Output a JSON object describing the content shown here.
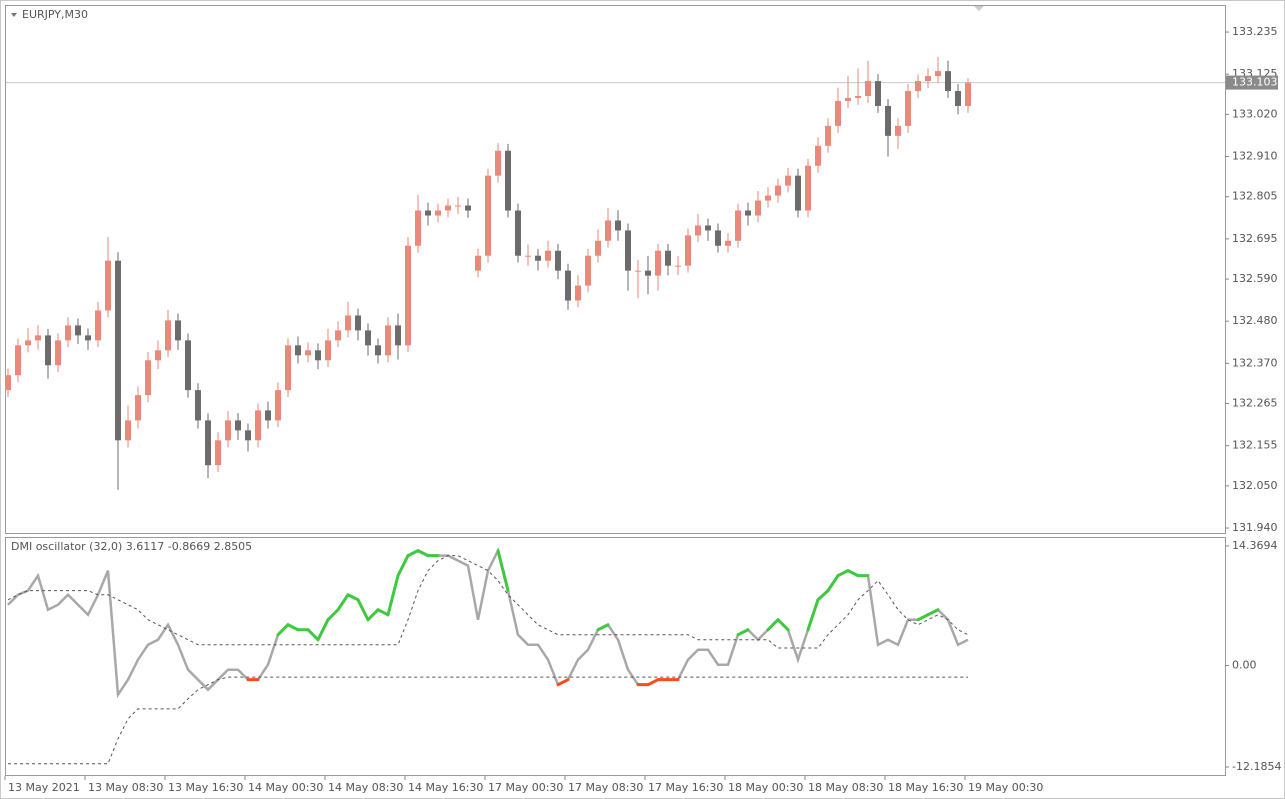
{
  "chart_data": [
    {
      "type": "candlestick",
      "title": "EURJPY,M30",
      "up_color": "#e8897a",
      "down_color": "#6b6b6b",
      "open": [
        132.3,
        132.339,
        132.417,
        132.43,
        132.443,
        132.365,
        132.43,
        132.469,
        132.443,
        132.43,
        132.508,
        132.638,
        132.169,
        132.221,
        132.287,
        132.378,
        132.404,
        132.482,
        132.43,
        132.3,
        132.221,
        132.104,
        132.169,
        132.221,
        132.195,
        132.169,
        132.247,
        132.221,
        132.3,
        132.417,
        132.391,
        132.404,
        132.378,
        132.43,
        132.456,
        132.495,
        132.456,
        132.417,
        132.391,
        132.469,
        132.417,
        132.677,
        132.769,
        132.756,
        132.769,
        132.782,
        132.782,
        132.612,
        132.651,
        132.86,
        132.925,
        132.769,
        132.651,
        132.651,
        132.638,
        132.664,
        132.612,
        132.534,
        132.573,
        132.651,
        132.69,
        132.743,
        132.717,
        132.612,
        132.612,
        132.599,
        132.664,
        132.625,
        132.625,
        132.704,
        132.73,
        132.717,
        132.677,
        132.69,
        132.769,
        132.756,
        132.795,
        132.808,
        132.834,
        132.86,
        132.769,
        132.886,
        132.938,
        132.99,
        133.055,
        133.063,
        133.068,
        133.107,
        133.042,
        132.964,
        132.99,
        133.081,
        133.107,
        133.12,
        133.133,
        133.081,
        133.042
      ],
      "high": [
        132.357,
        132.435,
        132.462,
        132.47,
        132.46,
        132.448,
        132.49,
        132.487,
        132.461,
        132.53,
        132.7,
        132.66,
        132.26,
        132.31,
        132.4,
        132.43,
        132.51,
        132.5,
        132.448,
        132.318,
        132.239,
        132.19,
        132.245,
        132.24,
        132.213,
        132.265,
        132.27,
        132.32,
        132.435,
        132.44,
        132.425,
        132.422,
        132.46,
        132.48,
        132.53,
        132.513,
        132.474,
        132.435,
        132.49,
        132.5,
        132.7,
        132.81,
        132.79,
        132.787,
        132.8,
        132.805,
        132.8,
        132.669,
        132.878,
        132.945,
        132.943,
        132.787,
        132.68,
        132.669,
        132.69,
        132.682,
        132.63,
        132.6,
        132.669,
        132.72,
        132.775,
        132.77,
        132.735,
        132.64,
        132.65,
        132.682,
        132.682,
        132.65,
        132.722,
        132.76,
        132.748,
        132.735,
        132.71,
        132.787,
        132.79,
        132.82,
        132.83,
        132.852,
        132.88,
        132.878,
        132.904,
        132.96,
        133.01,
        133.09,
        133.12,
        133.14,
        133.16,
        133.125,
        133.06,
        133.01,
        133.099,
        133.125,
        133.14,
        133.17,
        133.16,
        133.099,
        133.115
      ],
      "low": [
        132.282,
        132.321,
        132.399,
        132.405,
        132.33,
        132.347,
        132.412,
        132.42,
        132.405,
        132.412,
        132.49,
        132.04,
        132.15,
        132.2,
        132.269,
        132.355,
        132.386,
        132.405,
        132.28,
        132.2,
        132.07,
        132.086,
        132.151,
        132.17,
        132.14,
        132.151,
        132.2,
        132.203,
        132.282,
        132.37,
        132.373,
        132.355,
        132.36,
        132.412,
        132.438,
        132.43,
        132.39,
        132.37,
        132.373,
        132.38,
        132.399,
        132.659,
        132.73,
        132.738,
        132.751,
        132.76,
        132.75,
        132.594,
        132.633,
        132.842,
        132.751,
        132.633,
        132.625,
        132.612,
        132.62,
        132.59,
        132.51,
        132.516,
        132.555,
        132.633,
        132.672,
        132.69,
        132.56,
        132.54,
        132.55,
        132.56,
        132.6,
        132.6,
        132.607,
        132.686,
        132.69,
        132.659,
        132.659,
        132.672,
        132.73,
        132.738,
        132.777,
        132.79,
        132.816,
        132.751,
        132.751,
        132.868,
        132.92,
        132.972,
        133.037,
        133.045,
        133.05,
        133.024,
        132.91,
        132.93,
        132.972,
        133.063,
        133.089,
        133.102,
        133.063,
        133.02,
        133.024
      ],
      "close": [
        132.339,
        132.417,
        132.43,
        132.443,
        132.365,
        132.43,
        132.469,
        132.443,
        132.43,
        132.508,
        132.638,
        132.169,
        132.221,
        132.287,
        132.378,
        132.404,
        132.482,
        132.43,
        132.3,
        132.221,
        132.104,
        132.169,
        132.221,
        132.195,
        132.169,
        132.247,
        132.221,
        132.3,
        132.417,
        132.391,
        132.404,
        132.378,
        132.43,
        132.456,
        132.495,
        132.456,
        132.417,
        132.391,
        132.469,
        132.417,
        132.677,
        132.769,
        132.756,
        132.769,
        132.782,
        132.782,
        132.769,
        132.651,
        132.86,
        132.925,
        132.769,
        132.651,
        132.651,
        132.638,
        132.664,
        132.612,
        132.534,
        132.573,
        132.651,
        132.69,
        132.743,
        132.717,
        132.612,
        132.612,
        132.599,
        132.664,
        132.625,
        132.625,
        132.704,
        132.73,
        132.717,
        132.677,
        132.69,
        132.769,
        132.756,
        132.795,
        132.808,
        132.834,
        132.86,
        132.769,
        132.886,
        132.938,
        132.99,
        133.055,
        133.063,
        133.068,
        133.107,
        133.042,
        132.964,
        132.99,
        133.081,
        133.107,
        133.12,
        133.133,
        133.081,
        133.042,
        133.103
      ],
      "current_price": 133.103,
      "ylim": [
        131.927,
        133.303
      ],
      "yticks": [
        133.235,
        133.125,
        {
          "value": 133.02,
          "label": "133.020"
        },
        {
          "value": 132.91,
          "label": "132.910"
        },
        132.805,
        132.695,
        {
          "value": 132.59,
          "label": "132.590"
        },
        {
          "value": 132.48,
          "label": "132.480"
        },
        {
          "value": 132.37,
          "label": "132.370"
        },
        132.265,
        132.155,
        {
          "value": 132.05,
          "label": "132.050"
        },
        {
          "value": 131.94,
          "label": "131.940"
        }
      ]
    },
    {
      "type": "line",
      "title": "DMI oscillator (32,0) 3.6117 -0.8669 2.8505",
      "rise_color": "#3ec93e",
      "fall_color": "#ff4a1a",
      "series": [
        {
          "color": "#a8a8a8",
          "values": [
            7.3,
            8.5,
            9.0,
            10.8,
            6.7,
            7.3,
            8.5,
            7.3,
            6.1,
            8.5,
            11.4,
            -3.5,
            -1.7,
            0.7,
            2.5,
            3.1,
            4.9,
            2.5,
            -0.5,
            -1.7,
            -2.9,
            -1.7,
            -0.5,
            -0.5,
            -1.7,
            -1.7,
            0.1,
            3.7,
            4.9,
            4.3,
            4.3,
            3.1,
            5.5,
            6.7,
            8.5,
            7.9,
            5.5,
            6.7,
            6.1,
            10.8,
            13.2,
            13.8,
            13.2,
            13.2,
            13.2,
            12.6,
            12.0,
            5.5,
            11.4,
            13.8,
            9.0,
            3.7,
            2.5,
            2.5,
            0.7,
            -2.3,
            -1.7,
            0.7,
            1.9,
            4.3,
            4.9,
            3.1,
            -0.5,
            -2.3,
            -2.3,
            -1.7,
            -1.7,
            -1.7,
            0.7,
            1.9,
            1.9,
            0.1,
            0.1,
            3.7,
            4.3,
            3.1,
            4.3,
            5.5,
            4.3,
            0.7,
            4.3,
            7.9,
            9.0,
            10.8,
            11.4,
            10.8,
            10.8,
            2.5,
            3.1,
            2.5,
            5.5,
            5.5,
            6.1,
            6.7,
            5.5,
            2.5,
            3.1
          ]
        },
        {
          "color": "#555555",
          "dashed": true,
          "values": [
            7.9,
            8.5,
            9.0,
            9.0,
            9.0,
            9.0,
            9.0,
            9.0,
            9.0,
            8.5,
            8.5,
            7.9,
            7.3,
            6.7,
            5.5,
            4.9,
            4.3,
            3.7,
            3.1,
            2.5,
            2.5,
            2.5,
            2.5,
            2.5,
            2.5,
            2.5,
            2.5,
            2.5,
            2.5,
            2.5,
            2.5,
            2.5,
            2.5,
            2.5,
            2.5,
            2.5,
            2.5,
            2.5,
            2.5,
            2.5,
            5.5,
            9.0,
            11.4,
            12.6,
            13.2,
            13.2,
            12.6,
            12.0,
            11.4,
            10.2,
            8.5,
            7.3,
            6.1,
            4.9,
            4.3,
            3.7,
            3.7,
            3.7,
            3.7,
            3.7,
            3.7,
            3.7,
            3.7,
            3.7,
            3.7,
            3.7,
            3.7,
            3.7,
            3.7,
            3.1,
            3.1,
            3.1,
            3.1,
            3.1,
            3.1,
            3.1,
            3.1,
            2.1,
            2.1,
            2.1,
            2.1,
            2.1,
            3.7,
            4.9,
            6.1,
            7.9,
            9.0,
            10.2,
            8.5,
            6.7,
            5.5,
            4.9,
            5.5,
            6.1,
            5.5,
            4.3,
            3.7
          ]
        },
        {
          "color": "#555555",
          "dashed": true,
          "values": [
            -11.8,
            -11.8,
            -11.8,
            -11.8,
            -11.8,
            -11.8,
            -11.8,
            -11.8,
            -11.8,
            -11.8,
            -11.8,
            -8.8,
            -6.4,
            -5.2,
            -5.2,
            -5.2,
            -5.2,
            -5.2,
            -4.0,
            -2.9,
            -2.3,
            -1.7,
            -1.4,
            -1.4,
            -1.4,
            -1.4,
            -1.4,
            -1.4,
            -1.4,
            -1.4,
            -1.4,
            -1.4,
            -1.4,
            -1.4,
            -1.4,
            -1.4,
            -1.4,
            -1.4,
            -1.4,
            -1.4,
            -1.4,
            -1.4,
            -1.4,
            -1.4,
            -1.4,
            -1.4,
            -1.4,
            -1.4,
            -1.4,
            -1.4,
            -1.4,
            -1.4,
            -1.4,
            -1.4,
            -1.4,
            -1.4,
            -1.4,
            -1.4,
            -1.4,
            -1.4,
            -1.4,
            -1.4,
            -1.4,
            -1.4,
            -1.4,
            -1.4,
            -1.4,
            -1.4,
            -1.4,
            -1.4,
            -1.4,
            -1.4,
            -1.4,
            -1.4,
            -1.4,
            -1.4,
            -1.4,
            -1.4,
            -1.4,
            -1.4,
            -1.4,
            -1.4,
            -1.4,
            -1.4,
            -1.4,
            -1.4,
            -1.4,
            -1.4,
            -1.4,
            -1.4,
            -1.4,
            -1.4,
            -1.4,
            -1.4,
            -1.4,
            -1.4,
            -1.4
          ]
        }
      ],
      "ylim": [
        -13.15,
        15.32
      ],
      "yticks": [
        14.3694,
        {
          "value": 0,
          "label": "0.00"
        },
        -12.1854
      ],
      "x_labels": [
        "13 May 2021",
        "13 May 08:30",
        "13 May 16:30",
        "14 May 00:30",
        "14 May 08:30",
        "14 May 16:30",
        "17 May 00:30",
        "17 May 08:30",
        "17 May 16:30",
        "18 May 00:30",
        "18 May 08:30",
        "18 May 16:30",
        "19 May 00:30"
      ]
    }
  ]
}
